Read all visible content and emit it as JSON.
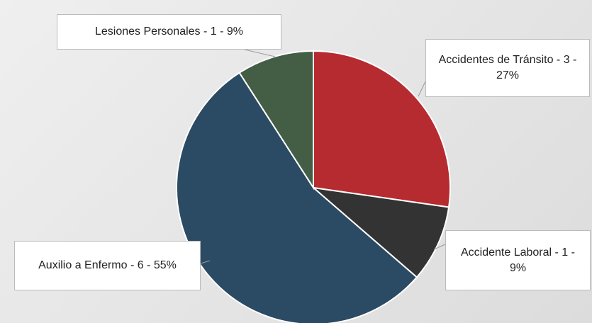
{
  "chart_data": {
    "type": "pie",
    "categories": [
      "Accidentes de Tránsito",
      "Accidente Laboral",
      "Auxilio a Enfermo",
      "Lesiones Personales"
    ],
    "values": [
      3,
      1,
      6,
      1
    ],
    "value_labels": [
      "Accidentes de Tránsito - 3 - 27%",
      "Accidente Laboral - 1 - 9%",
      "Auxilio a Enfermo - 6 - 55%",
      "Lesiones Personales - 1 - 9%"
    ],
    "colors": [
      "#b52b30",
      "#333333",
      "#2b4a63",
      "#435e45"
    ]
  }
}
